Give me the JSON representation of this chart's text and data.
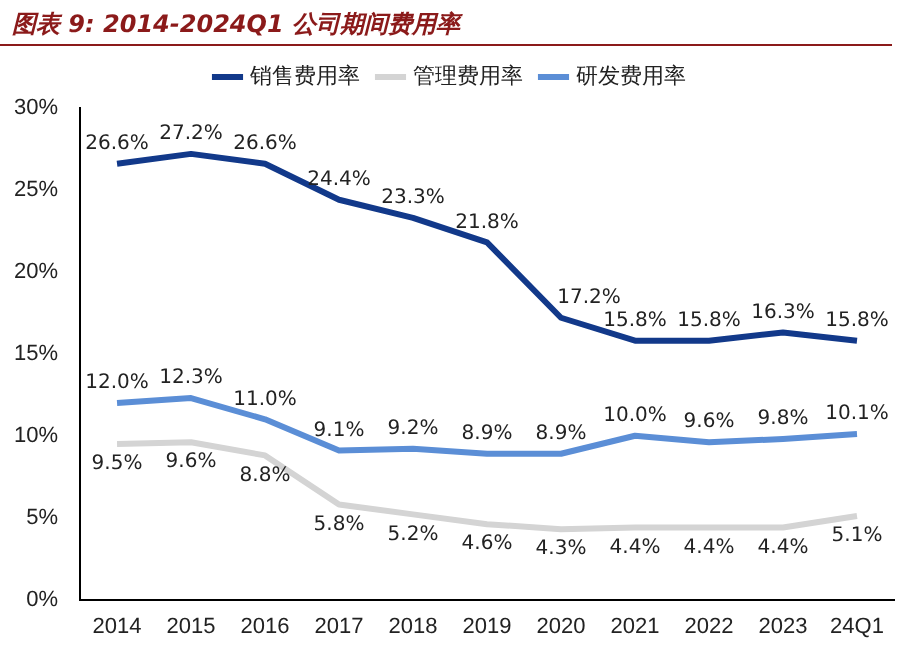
{
  "chart_data": {
    "type": "line",
    "title": "图表 9:  2014-2024Q1 公司期间费用率",
    "categories": [
      "2014",
      "2015",
      "2016",
      "2017",
      "2018",
      "2019",
      "2020",
      "2021",
      "2022",
      "2023",
      "24Q1"
    ],
    "series": [
      {
        "name": "销售费用率",
        "color": "#12398a",
        "values": [
          26.6,
          27.2,
          26.6,
          24.4,
          23.3,
          21.8,
          17.2,
          15.8,
          15.8,
          16.3,
          15.8
        ],
        "value_labels": [
          "26.6%",
          "27.2%",
          "26.6%",
          "24.4%",
          "23.3%",
          "21.8%",
          "17.2%",
          "15.8%",
          "15.8%",
          "16.3%",
          "15.8%"
        ]
      },
      {
        "name": "管理费用率",
        "color": "#d4d4d4",
        "values": [
          9.5,
          9.6,
          8.8,
          5.8,
          5.2,
          4.6,
          4.3,
          4.4,
          4.4,
          4.4,
          5.1
        ],
        "value_labels": [
          "9.5%",
          "9.6%",
          "8.8%",
          "5.8%",
          "5.2%",
          "4.6%",
          "4.3%",
          "4.4%",
          "4.4%",
          "4.4%",
          "5.1%"
        ]
      },
      {
        "name": "研发费用率",
        "color": "#5b8ed6",
        "values": [
          12.0,
          12.3,
          11.0,
          9.1,
          9.2,
          8.9,
          8.9,
          10.0,
          9.6,
          9.8,
          10.1
        ],
        "value_labels": [
          "12.0%",
          "12.3%",
          "11.0%",
          "9.1%",
          "9.2%",
          "8.9%",
          "8.9%",
          "10.0%",
          "9.6%",
          "9.8%",
          "10.1%"
        ]
      }
    ],
    "ylim": [
      0,
      30
    ],
    "yticks": [
      {
        "value": 0,
        "label": "0%"
      },
      {
        "value": 5,
        "label": "5%"
      },
      {
        "value": 10,
        "label": "10%"
      },
      {
        "value": 15,
        "label": "15%"
      },
      {
        "value": 20,
        "label": "20%"
      },
      {
        "value": 25,
        "label": "25%"
      },
      {
        "value": 30,
        "label": "30%"
      }
    ],
    "grid": false,
    "legend": "top",
    "marker": "none",
    "line_style": "solid"
  }
}
